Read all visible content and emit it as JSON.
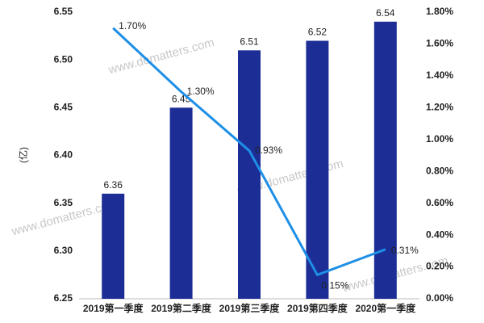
{
  "chart_data": {
    "type": "bar",
    "y_label": "(亿)",
    "watermark": "www.domatters.com",
    "categories": [
      "2019第一季度",
      "2019第二季度",
      "2019第三季度",
      "2019第四季度",
      "2020第一季度"
    ],
    "series": [
      {
        "type": "bar",
        "color": "#1c2e96",
        "values": [
          6.36,
          6.45,
          6.51,
          6.52,
          6.54
        ]
      },
      {
        "type": "line",
        "axis": "y2",
        "color": "#1e8fe6",
        "values": [
          1.7,
          1.3,
          0.93,
          0.15,
          0.31
        ],
        "value_labels": [
          "1.70%",
          "1.30%",
          "0.93%",
          "0.15%",
          "0.31%"
        ]
      }
    ],
    "ylim": [
      6.25,
      6.55
    ],
    "yticks": [
      6.25,
      {
        "value": 6.3,
        "label": "6.30"
      },
      6.35,
      {
        "value": 6.4,
        "label": "6.40"
      },
      6.45,
      {
        "value": 6.5,
        "label": "6.50"
      },
      6.55
    ],
    "y2lim": [
      0,
      1.8
    ],
    "y2ticks": [
      {
        "value": 0,
        "label": "0.00%"
      },
      {
        "value": 0.2,
        "label": "0.20%"
      },
      {
        "value": 0.4,
        "label": "0.40%"
      },
      {
        "value": 0.6,
        "label": "0.60%"
      },
      {
        "value": 0.8,
        "label": "0.80%"
      },
      {
        "value": 1.0,
        "label": "1.00%"
      },
      {
        "value": 1.2,
        "label": "1.20%"
      },
      {
        "value": 1.4,
        "label": "1.40%"
      },
      {
        "value": 1.6,
        "label": "1.60%"
      },
      {
        "value": 1.8,
        "label": "1.80%"
      }
    ],
    "grid": false
  }
}
